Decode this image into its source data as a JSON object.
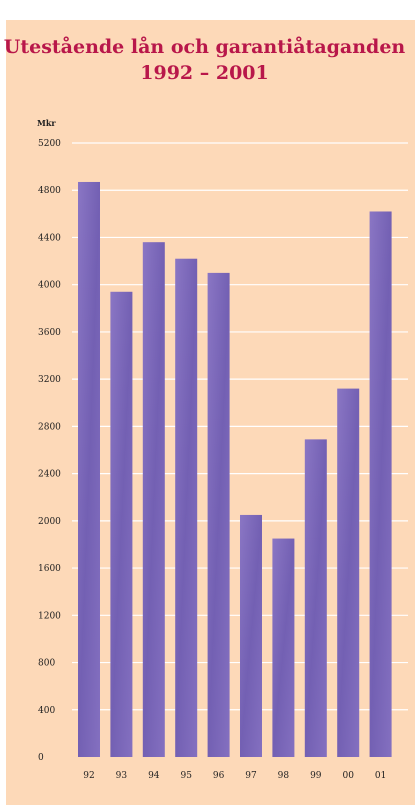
{
  "colors": {
    "background": "#fdd9b8",
    "title": "#b8174a",
    "bar": "#7b66b8",
    "bar_dark": "#5f4a9d",
    "grid": "#ffffff"
  },
  "chart_data": {
    "type": "bar",
    "title": "Utestående lån och garantiåtaganden",
    "subtitle": "1992 – 2001",
    "ylabel": "Mkr",
    "xlabel": "",
    "categories": [
      "92",
      "93",
      "94",
      "95",
      "96",
      "97",
      "98",
      "99",
      "00",
      "01"
    ],
    "values": [
      4870,
      3940,
      4360,
      4220,
      4100,
      2050,
      1850,
      2690,
      3120,
      4620
    ],
    "ylim": [
      0,
      5200
    ],
    "yticks": [
      0,
      400,
      800,
      1200,
      1600,
      2000,
      2400,
      2800,
      3200,
      3600,
      4000,
      4400,
      4800,
      5200
    ],
    "ytick_labels": [
      "0",
      "400",
      "800",
      "1200",
      "1600",
      "2000",
      "2400",
      "2800",
      "3200",
      "3600",
      "4000",
      "4400",
      "4800",
      "5200"
    ],
    "grid": true
  }
}
